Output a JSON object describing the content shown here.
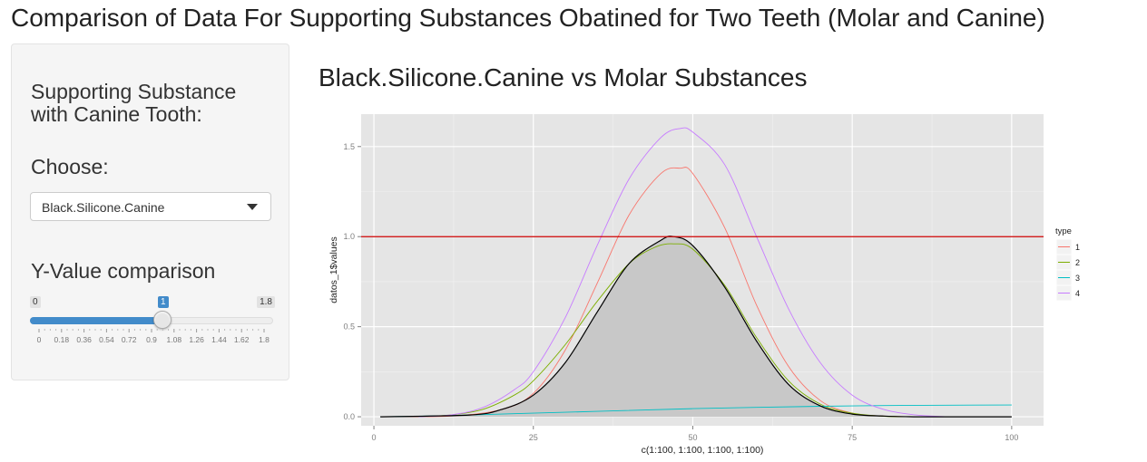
{
  "app": {
    "title": "Comparison of Data For Supporting Substances Obatined for Two Teeth (Molar and Canine)"
  },
  "sidebar": {
    "heading": "Supporting Substance with Canine Tooth:",
    "choose_label": "Choose:",
    "select_value": "Black.Silicone.Canine",
    "slider_label": "Y-Value comparison",
    "slider": {
      "min_label": "0",
      "max_label": "1.8",
      "current_label": "1",
      "min": 0,
      "max": 1.8,
      "value": 1,
      "ticks": [
        "0",
        "0.18",
        "0.36",
        "0.54",
        "0.72",
        "0.9",
        "1.08",
        "1.26",
        "1.44",
        "1.62",
        "1.8"
      ]
    }
  },
  "chart_data": {
    "type": "line",
    "title": "Black.Silicone.Canine vs Molar Substances",
    "xlabel": "c(1:100, 1:100, 1:100, 1:100)",
    "ylabel": "datos_1$values",
    "xlim": [
      -2,
      105
    ],
    "ylim": [
      -0.05,
      1.68
    ],
    "x_ticks": [
      "0",
      "25",
      "50",
      "75",
      "100"
    ],
    "y_ticks": [
      "0.0",
      "0.5",
      "1.0",
      "1.5"
    ],
    "grid": true,
    "legend_title": "type",
    "legend_position": "right",
    "hline": {
      "y": 1.0,
      "color": "#cc0000"
    },
    "series": [
      {
        "name": "1",
        "color": "#F8766D",
        "x": [
          1,
          12,
          20,
          25,
          30,
          35,
          40,
          45,
          48,
          50,
          55,
          60,
          65,
          70,
          75,
          80,
          85
        ],
        "y": [
          0,
          0.004,
          0.04,
          0.13,
          0.37,
          0.74,
          1.12,
          1.35,
          1.38,
          1.35,
          1.05,
          0.62,
          0.28,
          0.09,
          0.02,
          0.004,
          0
        ]
      },
      {
        "name": "2",
        "color": "#7CAE00",
        "x": [
          7,
          12,
          17,
          22,
          25,
          30,
          35,
          40,
          44,
          47,
          50,
          55,
          60,
          65,
          70,
          75,
          80,
          85
        ],
        "y": [
          0,
          0.01,
          0.04,
          0.12,
          0.2,
          0.4,
          0.64,
          0.85,
          0.94,
          0.96,
          0.93,
          0.73,
          0.44,
          0.2,
          0.07,
          0.02,
          0.003,
          0
        ]
      },
      {
        "name": "3",
        "color": "#00BFC4",
        "x": [
          1,
          10,
          20,
          30,
          40,
          50,
          60,
          70,
          80,
          90,
          100
        ],
        "y": [
          0,
          0.005,
          0.015,
          0.025,
          0.035,
          0.045,
          0.052,
          0.058,
          0.062,
          0.064,
          0.065
        ]
      },
      {
        "name": "4",
        "color": "#C77CFF",
        "x": [
          7,
          12,
          17,
          22,
          25,
          30,
          35,
          40,
          45,
          48,
          50,
          55,
          60,
          65,
          70,
          75,
          80,
          85,
          90
        ],
        "y": [
          0,
          0.01,
          0.05,
          0.15,
          0.25,
          0.55,
          0.95,
          1.32,
          1.55,
          1.6,
          1.58,
          1.4,
          1.0,
          0.6,
          0.3,
          0.12,
          0.04,
          0.01,
          0
        ]
      },
      {
        "name": "",
        "color": "#000000",
        "fill": "#c8c8c8",
        "x": [
          1,
          15,
          20,
          25,
          30,
          35,
          40,
          45,
          47,
          50,
          55,
          60,
          65,
          70,
          75,
          80,
          85,
          90,
          100
        ],
        "y": [
          0,
          0.01,
          0.04,
          0.12,
          0.3,
          0.58,
          0.85,
          0.98,
          1.0,
          0.95,
          0.72,
          0.42,
          0.18,
          0.06,
          0.015,
          0.004,
          0,
          0,
          0
        ]
      }
    ]
  }
}
